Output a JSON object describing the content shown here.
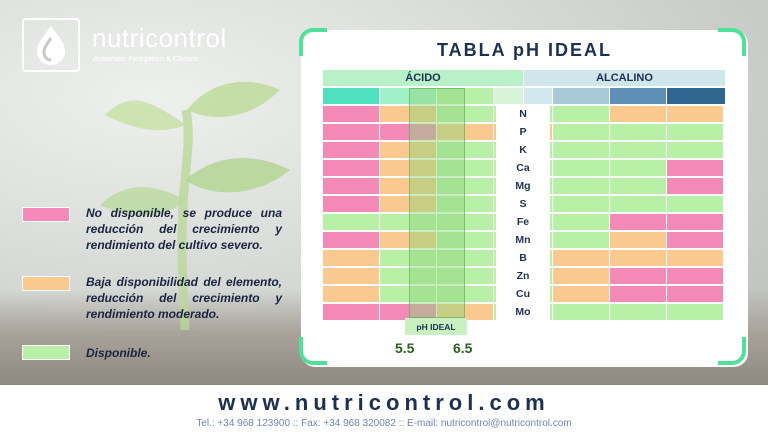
{
  "brand": {
    "name": "nutricontrol",
    "tagline": "Automatic Fertigation & Climate"
  },
  "legend": [
    {
      "color": "#f48ab8",
      "text": "No disponible, se produce una reducción del crecimiento y rendimiento del cultivo severo."
    },
    {
      "color": "#f9c98f",
      "text": "Baja disponibilidad del elemento, reducción del crecimiento y rendimiento moderado."
    },
    {
      "color": "#b8f0a8",
      "text": "Disponible."
    }
  ],
  "table": {
    "title": "TABLA pH IDEAL",
    "acid_label": "ÁCIDO",
    "alkaline_label": "ALCALINO",
    "header_colors": [
      "#4fe0c0",
      "#a0f0c8",
      "#b8f0a8",
      "#d8f4d8",
      "#d0e8ee",
      "#a8cad8",
      "#5f8fb4",
      "#2e6690"
    ],
    "state_colors": {
      "N": "#f48ab8",
      "B": "#f9c98f",
      "D": "#b8f0a8"
    },
    "elements": [
      "N",
      "P",
      "K",
      "Ca",
      "Mg",
      "S",
      "Fe",
      "Mn",
      "B",
      "Zn",
      "Cu",
      "Mo"
    ],
    "rows": [
      [
        "N",
        "B",
        "D",
        "D",
        "D",
        "D",
        "B",
        "B"
      ],
      [
        "N",
        "N",
        "B",
        "B",
        "B",
        "D",
        "D",
        "D"
      ],
      [
        "N",
        "B",
        "D",
        "D",
        "D",
        "D",
        "D",
        "D"
      ],
      [
        "N",
        "B",
        "D",
        "D",
        "D",
        "D",
        "D",
        "N"
      ],
      [
        "N",
        "B",
        "D",
        "D",
        "D",
        "D",
        "D",
        "N"
      ],
      [
        "N",
        "B",
        "D",
        "D",
        "D",
        "D",
        "D",
        "D"
      ],
      [
        "D",
        "D",
        "D",
        "D",
        "D",
        "D",
        "N",
        "N"
      ],
      [
        "N",
        "B",
        "D",
        "D",
        "D",
        "D",
        "B",
        "N"
      ],
      [
        "B",
        "D",
        "D",
        "D",
        "D",
        "B",
        "B",
        "B"
      ],
      [
        "B",
        "D",
        "D",
        "D",
        "D",
        "B",
        "N",
        "N"
      ],
      [
        "B",
        "D",
        "D",
        "D",
        "D",
        "B",
        "N",
        "N"
      ],
      [
        "N",
        "N",
        "B",
        "D",
        "D",
        "D",
        "D",
        "D"
      ]
    ],
    "ideal_label": "pH IDEAL",
    "ideal_low": "5.5",
    "ideal_high": "6.5"
  },
  "footer": {
    "url": "www.nutricontrol.com",
    "contact": "Tel.: +34 968 123900 :: Fax: +34 968 320082 :: E-mail: nutricontrol@nutricontrol.com"
  }
}
